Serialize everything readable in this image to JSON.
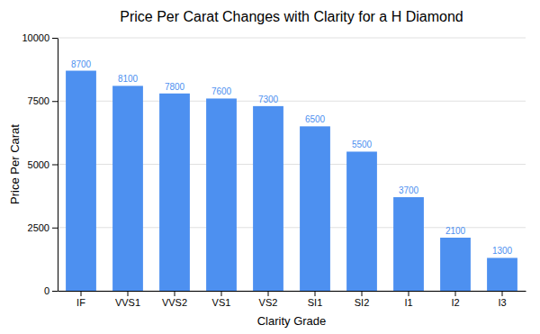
{
  "chart_data": {
    "type": "bar",
    "title": "Price Per Carat Changes with Clarity for a H Diamond",
    "xlabel": "Clarity Grade",
    "ylabel": "Price Per Carat",
    "categories": [
      "IF",
      "VVS1",
      "VVS2",
      "VS1",
      "VS2",
      "SI1",
      "SI2",
      "I1",
      "I2",
      "I3"
    ],
    "values": [
      8700,
      8100,
      7800,
      7600,
      7300,
      6500,
      5500,
      3700,
      2100,
      1300
    ],
    "color": "#4d90f0",
    "ylim": [
      0,
      10000
    ],
    "yticks": [
      0,
      2500,
      5000,
      7500,
      10000
    ],
    "grid": true,
    "data_labels": true
  }
}
